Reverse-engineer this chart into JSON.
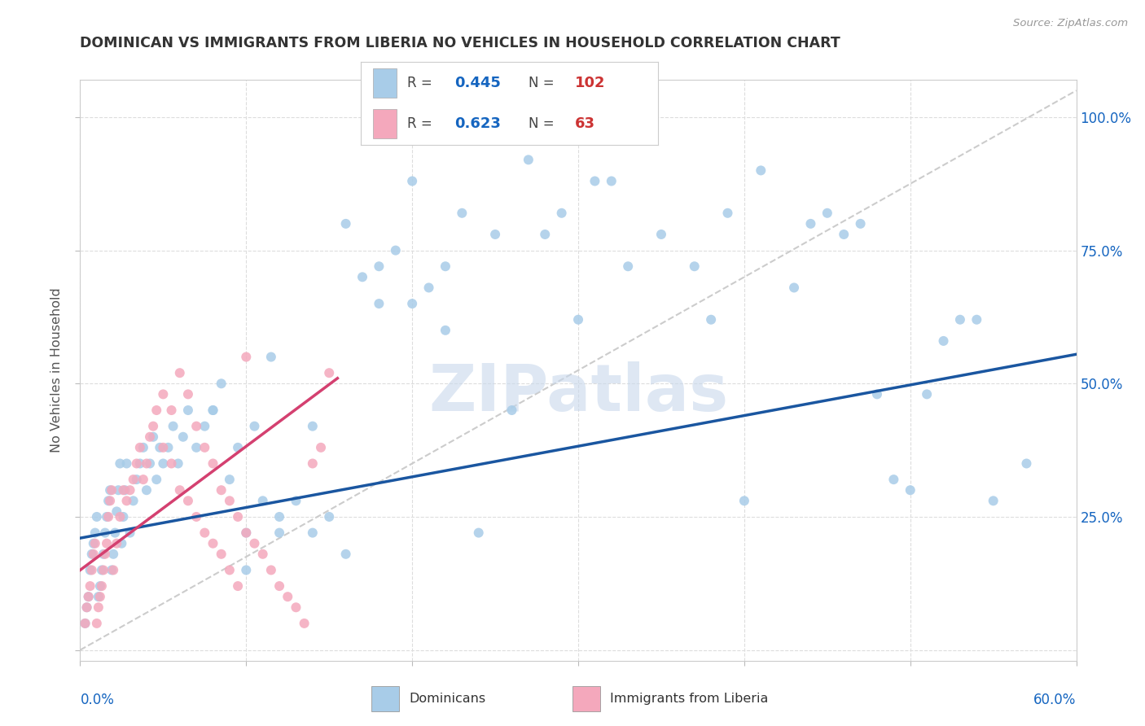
{
  "title": "DOMINICAN VS IMMIGRANTS FROM LIBERIA NO VEHICLES IN HOUSEHOLD CORRELATION CHART",
  "source": "Source: ZipAtlas.com",
  "ylabel": "No Vehicles in Household",
  "legend_blue_r": "0.445",
  "legend_blue_n": "102",
  "legend_pink_r": "0.623",
  "legend_pink_n": "63",
  "blue_color": "#a8cce8",
  "pink_color": "#f4a8bc",
  "blue_line_color": "#1a56a0",
  "pink_line_color": "#d44070",
  "diagonal_color": "#cccccc",
  "watermark": "ZIPatlas",
  "background_color": "#ffffff",
  "xlim": [
    0.0,
    0.6
  ],
  "ylim": [
    -0.02,
    1.07
  ],
  "blue_line_x0": 0.0,
  "blue_line_y0": 0.21,
  "blue_line_x1": 0.6,
  "blue_line_y1": 0.555,
  "pink_line_x0": 0.0,
  "pink_line_y0": 0.15,
  "pink_line_x1": 0.155,
  "pink_line_y1": 0.51,
  "blue_x": [
    0.003,
    0.004,
    0.005,
    0.006,
    0.007,
    0.008,
    0.009,
    0.01,
    0.011,
    0.012,
    0.013,
    0.014,
    0.015,
    0.016,
    0.017,
    0.018,
    0.019,
    0.02,
    0.021,
    0.022,
    0.023,
    0.024,
    0.025,
    0.026,
    0.027,
    0.028,
    0.03,
    0.032,
    0.034,
    0.036,
    0.038,
    0.04,
    0.042,
    0.044,
    0.046,
    0.048,
    0.05,
    0.053,
    0.056,
    0.059,
    0.062,
    0.065,
    0.07,
    0.075,
    0.08,
    0.085,
    0.09,
    0.095,
    0.1,
    0.105,
    0.11,
    0.115,
    0.12,
    0.13,
    0.14,
    0.15,
    0.16,
    0.17,
    0.18,
    0.19,
    0.2,
    0.21,
    0.22,
    0.23,
    0.25,
    0.27,
    0.29,
    0.31,
    0.33,
    0.35,
    0.37,
    0.39,
    0.41,
    0.43,
    0.45,
    0.47,
    0.49,
    0.51,
    0.53,
    0.55,
    0.57,
    0.44,
    0.46,
    0.48,
    0.5,
    0.52,
    0.54,
    0.38,
    0.4,
    0.32,
    0.3,
    0.28,
    0.26,
    0.24,
    0.2,
    0.22,
    0.18,
    0.16,
    0.14,
    0.12,
    0.1,
    0.08
  ],
  "blue_y": [
    0.05,
    0.08,
    0.1,
    0.15,
    0.18,
    0.2,
    0.22,
    0.25,
    0.1,
    0.12,
    0.15,
    0.18,
    0.22,
    0.25,
    0.28,
    0.3,
    0.15,
    0.18,
    0.22,
    0.26,
    0.3,
    0.35,
    0.2,
    0.25,
    0.3,
    0.35,
    0.22,
    0.28,
    0.32,
    0.35,
    0.38,
    0.3,
    0.35,
    0.4,
    0.32,
    0.38,
    0.35,
    0.38,
    0.42,
    0.35,
    0.4,
    0.45,
    0.38,
    0.42,
    0.45,
    0.5,
    0.32,
    0.38,
    0.22,
    0.42,
    0.28,
    0.55,
    0.22,
    0.28,
    0.42,
    0.25,
    0.8,
    0.7,
    0.72,
    0.75,
    0.88,
    0.68,
    0.6,
    0.82,
    0.78,
    0.92,
    0.82,
    0.88,
    0.72,
    0.78,
    0.72,
    0.82,
    0.9,
    0.68,
    0.82,
    0.8,
    0.32,
    0.48,
    0.62,
    0.28,
    0.35,
    0.8,
    0.78,
    0.48,
    0.3,
    0.58,
    0.62,
    0.62,
    0.28,
    0.88,
    0.62,
    0.78,
    0.45,
    0.22,
    0.65,
    0.72,
    0.65,
    0.18,
    0.22,
    0.25,
    0.15,
    0.45
  ],
  "pink_x": [
    0.003,
    0.004,
    0.005,
    0.006,
    0.007,
    0.008,
    0.009,
    0.01,
    0.011,
    0.012,
    0.013,
    0.014,
    0.015,
    0.016,
    0.017,
    0.018,
    0.019,
    0.02,
    0.022,
    0.024,
    0.026,
    0.028,
    0.03,
    0.032,
    0.034,
    0.036,
    0.038,
    0.04,
    0.042,
    0.044,
    0.046,
    0.05,
    0.055,
    0.06,
    0.065,
    0.07,
    0.075,
    0.08,
    0.085,
    0.09,
    0.095,
    0.1,
    0.105,
    0.11,
    0.115,
    0.12,
    0.125,
    0.13,
    0.135,
    0.14,
    0.145,
    0.15,
    0.05,
    0.055,
    0.06,
    0.065,
    0.07,
    0.075,
    0.08,
    0.085,
    0.09,
    0.095,
    0.1
  ],
  "pink_y": [
    0.05,
    0.08,
    0.1,
    0.12,
    0.15,
    0.18,
    0.2,
    0.05,
    0.08,
    0.1,
    0.12,
    0.15,
    0.18,
    0.2,
    0.25,
    0.28,
    0.3,
    0.15,
    0.2,
    0.25,
    0.3,
    0.28,
    0.3,
    0.32,
    0.35,
    0.38,
    0.32,
    0.35,
    0.4,
    0.42,
    0.45,
    0.48,
    0.45,
    0.52,
    0.48,
    0.42,
    0.38,
    0.35,
    0.3,
    0.28,
    0.25,
    0.22,
    0.2,
    0.18,
    0.15,
    0.12,
    0.1,
    0.08,
    0.05,
    0.35,
    0.38,
    0.52,
    0.38,
    0.35,
    0.3,
    0.28,
    0.25,
    0.22,
    0.2,
    0.18,
    0.15,
    0.12,
    0.55
  ]
}
